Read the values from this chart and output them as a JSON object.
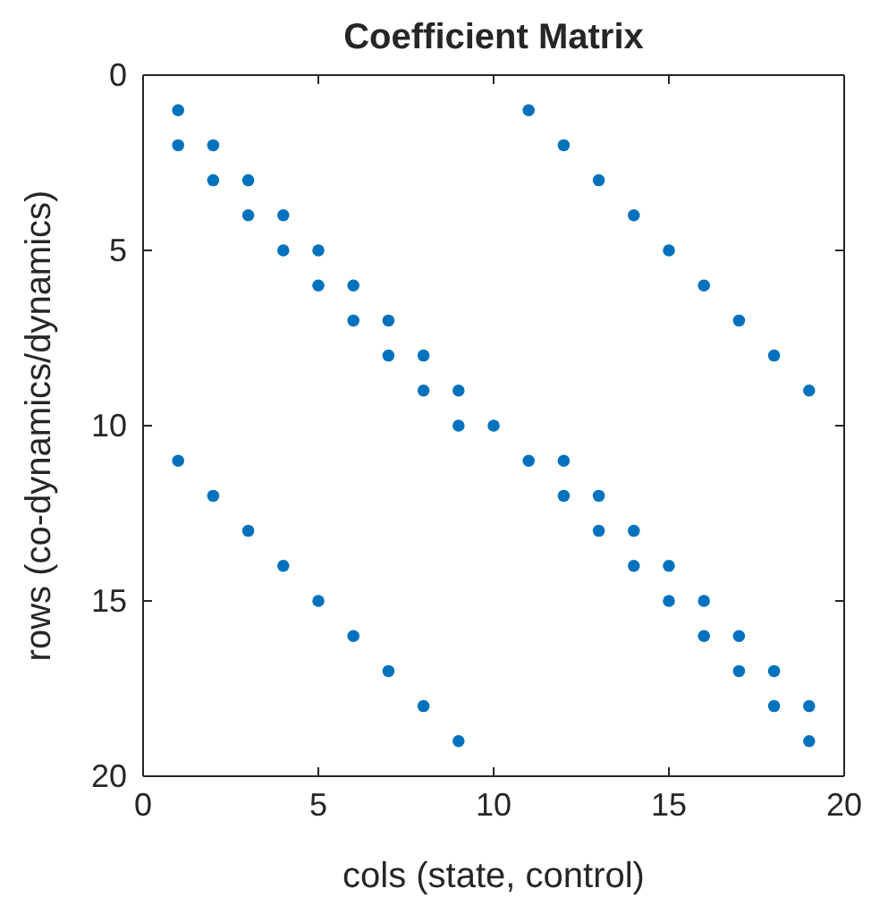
{
  "chart_data": {
    "type": "scatter",
    "title": "Coefficient Matrix",
    "xlabel": "cols (state, control)",
    "ylabel": "rows (co-dynamics/dynamics)",
    "xlim": [
      0,
      20
    ],
    "xticks": [
      0,
      5,
      10,
      15,
      20
    ],
    "ylim": [
      20,
      0
    ],
    "yticks": [
      0,
      5,
      10,
      15,
      20
    ],
    "marker": "circle",
    "grid": false,
    "series": [
      {
        "color": "#0072bd",
        "x": [
          1,
          11,
          1,
          2,
          12,
          2,
          3,
          13,
          3,
          4,
          14,
          4,
          5,
          15,
          5,
          6,
          16,
          6,
          7,
          17,
          7,
          8,
          18,
          8,
          9,
          19,
          9,
          10,
          1,
          11,
          12,
          2,
          12,
          13,
          3,
          13,
          14,
          4,
          14,
          15,
          5,
          15,
          16,
          6,
          16,
          17,
          7,
          17,
          18,
          8,
          18,
          19,
          9,
          19
        ],
        "values": [
          1,
          1,
          2,
          2,
          2,
          3,
          3,
          3,
          4,
          4,
          4,
          5,
          5,
          5,
          6,
          6,
          6,
          7,
          7,
          7,
          8,
          8,
          8,
          9,
          9,
          9,
          10,
          10,
          11,
          11,
          11,
          12,
          12,
          12,
          13,
          13,
          13,
          14,
          14,
          14,
          15,
          15,
          15,
          16,
          16,
          16,
          17,
          17,
          17,
          18,
          18,
          18,
          19,
          19
        ]
      }
    ]
  }
}
